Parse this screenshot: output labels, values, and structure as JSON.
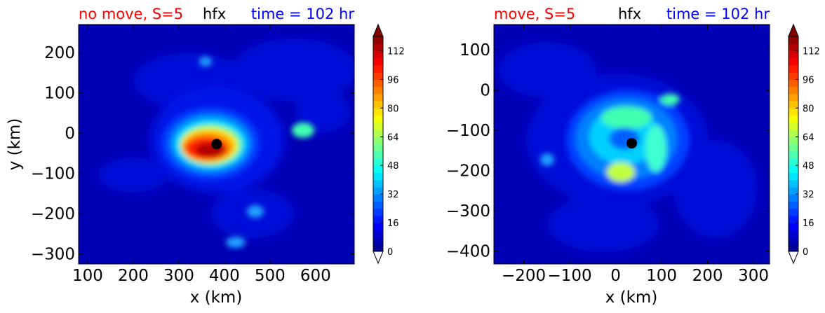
{
  "chart_data": [
    {
      "type": "heatmap",
      "title_left": "no move, S=5",
      "title_center": "hfx",
      "title_right": "time = 102 hr",
      "title_colors": {
        "left": "#ff0000",
        "center": "#000000",
        "right": "#0000ff"
      },
      "xlabel": "x (km)",
      "ylabel": "y (km)",
      "xlim": [
        80,
        685
      ],
      "ylim": [
        -325,
        270
      ],
      "xticks": [
        100,
        200,
        300,
        400,
        500,
        600
      ],
      "yticks": [
        200,
        100,
        0,
        -100,
        -200,
        -300
      ],
      "xtick_labels": [
        "100",
        "200",
        "300",
        "400",
        "500",
        "600"
      ],
      "ytick_labels": [
        "200",
        "100",
        "0",
        "−100",
        "−200",
        "−300"
      ],
      "center_marker": [
        383,
        -27
      ],
      "colorbar": {
        "min": 0,
        "max": 120,
        "step": 4,
        "extend": "both",
        "ticks": [
          0,
          16,
          32,
          48,
          64,
          80,
          96,
          112
        ],
        "tick_labels": [
          "0",
          "16",
          "32",
          "48",
          "64",
          "80",
          "96",
          "112"
        ],
        "colormap": "jet"
      }
    },
    {
      "type": "heatmap",
      "title_left": "move, S=5",
      "title_center": "hfx",
      "title_right": "time = 102 hr",
      "title_colors": {
        "left": "#ff0000",
        "center": "#000000",
        "right": "#0000ff"
      },
      "xlabel": "x (km)",
      "ylabel": "",
      "xlim": [
        -265,
        335
      ],
      "ylim": [
        -432,
        163
      ],
      "xticks": [
        -200,
        -100,
        0,
        100,
        200,
        300
      ],
      "yticks": [
        100,
        0,
        -100,
        -200,
        -300,
        -400
      ],
      "xtick_labels": [
        "−200",
        "−100",
        "0",
        "100",
        "200",
        "300"
      ],
      "ytick_labels": [
        "100",
        "0",
        "−100",
        "−200",
        "−300",
        "−400"
      ],
      "center_marker": [
        35,
        -132
      ],
      "colorbar": {
        "min": 0,
        "max": 120,
        "step": 4,
        "extend": "both",
        "ticks": [
          0,
          16,
          32,
          48,
          64,
          80,
          96,
          112
        ],
        "tick_labels": [
          "0",
          "16",
          "32",
          "48",
          "64",
          "80",
          "96",
          "112"
        ],
        "colormap": "jet"
      }
    }
  ]
}
